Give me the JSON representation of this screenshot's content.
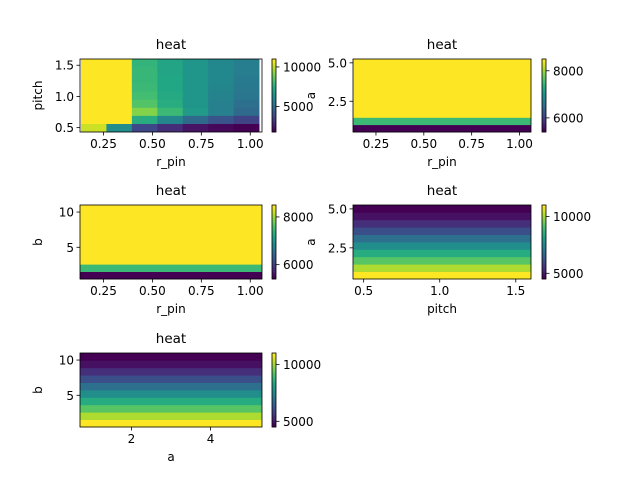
{
  "chart_data": [
    {
      "type": "heatmap",
      "title": "heat",
      "xlabel": "r_pin",
      "ylabel": "pitch",
      "xticks": [
        "0.25",
        "0.50",
        "0.75",
        "1.00"
      ],
      "yticks": [
        "0.5",
        "1.0",
        "1.5"
      ],
      "xlim": [
        0.13,
        1.06
      ],
      "ylim": [
        0.43,
        1.6
      ],
      "x": [
        0.2,
        0.33,
        0.46,
        0.59,
        0.72,
        0.85,
        0.98
      ],
      "y": [
        0.5,
        0.63,
        0.76,
        0.89,
        1.02,
        1.15,
        1.28,
        1.41,
        1.54
      ],
      "colorbar_ticks": [
        "5000",
        "10000"
      ],
      "clim": [
        1800,
        11000
      ],
      "values": [
        [
          10300,
          6300,
          3800,
          3000,
          2300,
          2000,
          1800
        ],
        [
          11000,
          11000,
          7500,
          6000,
          5000,
          4200,
          3600
        ],
        [
          11000,
          11000,
          9300,
          8000,
          6800,
          5800,
          5000
        ],
        [
          11000,
          11000,
          8500,
          7500,
          6600,
          5800,
          5200
        ],
        [
          11000,
          11000,
          8200,
          7400,
          6600,
          5900,
          5400
        ],
        [
          11000,
          11000,
          8000,
          7300,
          6600,
          6000,
          5500
        ],
        [
          11000,
          11000,
          7900,
          7300,
          6600,
          6100,
          5600
        ],
        [
          11000,
          11000,
          7900,
          7200,
          6600,
          6100,
          5700
        ],
        [
          11000,
          11000,
          7800,
          7200,
          6600,
          6100,
          5700
        ]
      ]
    },
    {
      "type": "heatmap",
      "title": "heat",
      "xlabel": "r_pin",
      "ylabel": "a",
      "xticks": [
        "0.25",
        "0.50",
        "0.75",
        "1.00"
      ],
      "yticks": [
        "2.5",
        "5.0"
      ],
      "xlim": [
        0.13,
        1.06
      ],
      "ylim": [
        0.5,
        5.25
      ],
      "colorbar_ticks": [
        "6000",
        "8000"
      ],
      "clim": [
        5400,
        8500
      ],
      "row_values": [
        5400,
        7500,
        8500,
        8500,
        8500,
        8500,
        8500,
        8500,
        8500,
        8500
      ]
    },
    {
      "type": "heatmap",
      "title": "heat",
      "xlabel": "r_pin",
      "ylabel": "b",
      "xticks": [
        "0.25",
        "0.50",
        "0.75",
        "1.00"
      ],
      "yticks": [
        "5",
        "10"
      ],
      "xlim": [
        0.13,
        1.06
      ],
      "ylim": [
        0.5,
        11
      ],
      "colorbar_ticks": [
        "6000",
        "8000"
      ],
      "clim": [
        5400,
        8500
      ],
      "row_values": [
        5400,
        7500,
        8500,
        8500,
        8500,
        8500,
        8500,
        8500,
        8500,
        8500
      ]
    },
    {
      "type": "heatmap",
      "title": "heat",
      "xlabel": "pitch",
      "ylabel": "a",
      "xticks": [
        "0.5",
        "1.0",
        "1.5"
      ],
      "yticks": [
        "2.5",
        "5.0"
      ],
      "xlim": [
        0.43,
        1.6
      ],
      "ylim": [
        0.5,
        5.25
      ],
      "colorbar_ticks": [
        "5000",
        "10000"
      ],
      "clim": [
        4500,
        11000
      ],
      "row_values": [
        11000,
        10200,
        9300,
        8500,
        7700,
        6900,
        6100,
        5400,
        4800,
        4500
      ]
    },
    {
      "type": "heatmap",
      "title": "heat",
      "xlabel": "a",
      "ylabel": "b",
      "xticks": [
        "2",
        "4"
      ],
      "yticks": [
        "5",
        "10"
      ],
      "xlim": [
        0.7,
        5.3
      ],
      "ylim": [
        0.5,
        11
      ],
      "colorbar_ticks": [
        "5000",
        "10000"
      ],
      "clim": [
        4500,
        11000
      ],
      "row_values": [
        11000,
        10200,
        9300,
        8500,
        7700,
        6900,
        6100,
        5400,
        4800,
        4500
      ]
    }
  ]
}
